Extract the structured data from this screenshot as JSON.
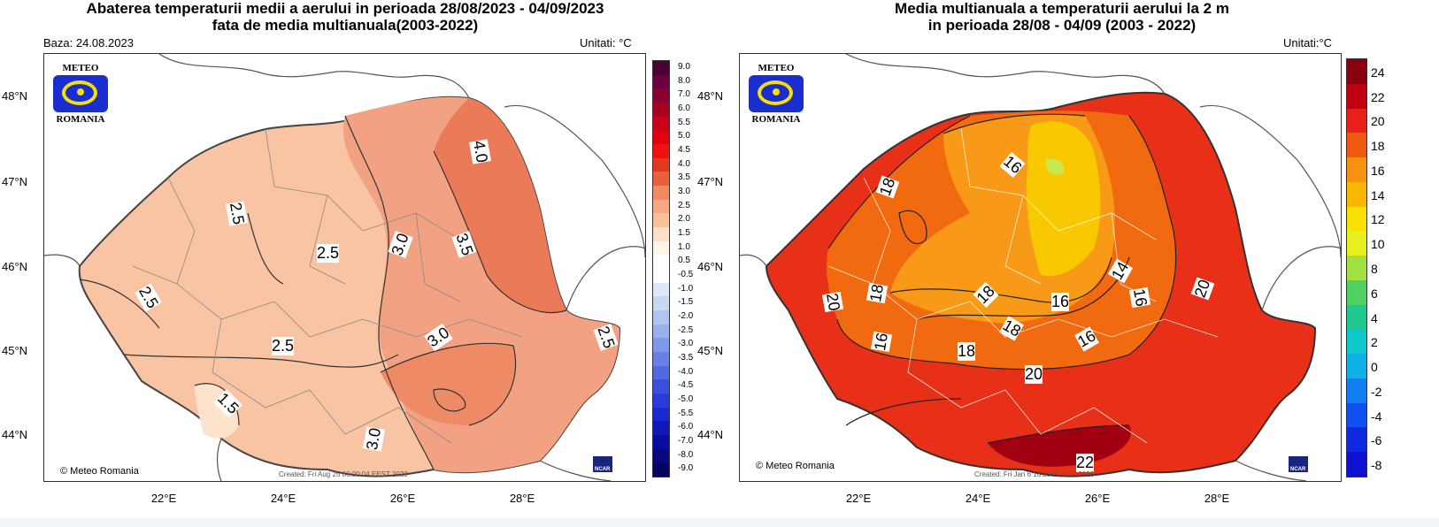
{
  "left": {
    "title_line1": "Abaterea temperaturii medii a aerului in perioada 28/08/2023 - 04/09/2023",
    "title_line2": "fata de media multianuala(2003-2022)",
    "base": "Baza: 24.08.2023",
    "units": "Unitati: °C",
    "colorbar_labels": [
      "9.0",
      "8.0",
      "7.0",
      "6.0",
      "5.5",
      "5.0",
      "4.5",
      "4.0",
      "3.5",
      "3.0",
      "2.5",
      "2.0",
      "1.5",
      "1.0",
      "0.5",
      "-0.5",
      "-1.0",
      "-1.5",
      "-2.0",
      "-2.5",
      "-3.0",
      "-3.5",
      "-4.0",
      "-4.5",
      "-5.0",
      "-5.5",
      "-6.0",
      "-7.0",
      "-8.0",
      "-9.0"
    ],
    "colorbar_colors": [
      "#4a0033",
      "#6a0040",
      "#8a0030",
      "#a80020",
      "#c80018",
      "#e00010",
      "#f01010",
      "#e03a20",
      "#e86040",
      "#f08a60",
      "#f6a880",
      "#fac09c",
      "#fde0c8",
      "#fff4e8",
      "#ffffff",
      "#ffffff",
      "#dde8f8",
      "#c8d8f4",
      "#b0c4f0",
      "#98b0ec",
      "#8098e8",
      "#6a80e4",
      "#5068e0",
      "#3a50dc",
      "#2a3cd8",
      "#1a28d0",
      "#1018b8",
      "#0a0ca0",
      "#080880",
      "#060660"
    ],
    "contour_labels": [
      "4.0",
      "2.5",
      "2.5",
      "3.0",
      "3.5",
      "2.5",
      "2.5",
      "3.0",
      "1.5",
      "3.0",
      "2.5",
      "2.5"
    ],
    "copyright": "© Meteo Romania",
    "created": "Created: Fri Aug 25 06:00:04 EEST 2023"
  },
  "right": {
    "title_line1": "Media multianuala a temperaturii aerului la 2 m",
    "title_line2": "in perioada 28/08 - 04/09 (2003 - 2022)",
    "units": "Unitati:°C",
    "colorbar_labels": [
      "24",
      "22",
      "20",
      "18",
      "16",
      "14",
      "12",
      "10",
      "8",
      "6",
      "4",
      "2",
      "0",
      "-2",
      "-4",
      "-6",
      "-8"
    ],
    "colorbar_colors": [
      "#8a0010",
      "#c00010",
      "#e8201a",
      "#f05a10",
      "#f89010",
      "#f8b800",
      "#f8e000",
      "#e8f020",
      "#a0e040",
      "#50d060",
      "#20c890",
      "#10c8c8",
      "#10b0e8",
      "#1080f0",
      "#1050f0",
      "#1028e0",
      "#1010d0"
    ],
    "contour_labels": [
      "16",
      "18",
      "14",
      "18",
      "20",
      "18",
      "16",
      "16",
      "16",
      "18",
      "20",
      "16",
      "18",
      "20",
      "22"
    ],
    "copyright": "© Meteo Romania",
    "created": "Created: Fri Jan  6 16:23:24 EET 2023"
  },
  "logo": {
    "top": "METEO",
    "bottom": "ROMANIA"
  },
  "ncar": "NCAR",
  "latitudes": [
    "48°N",
    "47°N",
    "46°N",
    "45°N",
    "44°N"
  ],
  "longitudes": [
    "22°E",
    "24°E",
    "26°E",
    "28°E"
  ]
}
